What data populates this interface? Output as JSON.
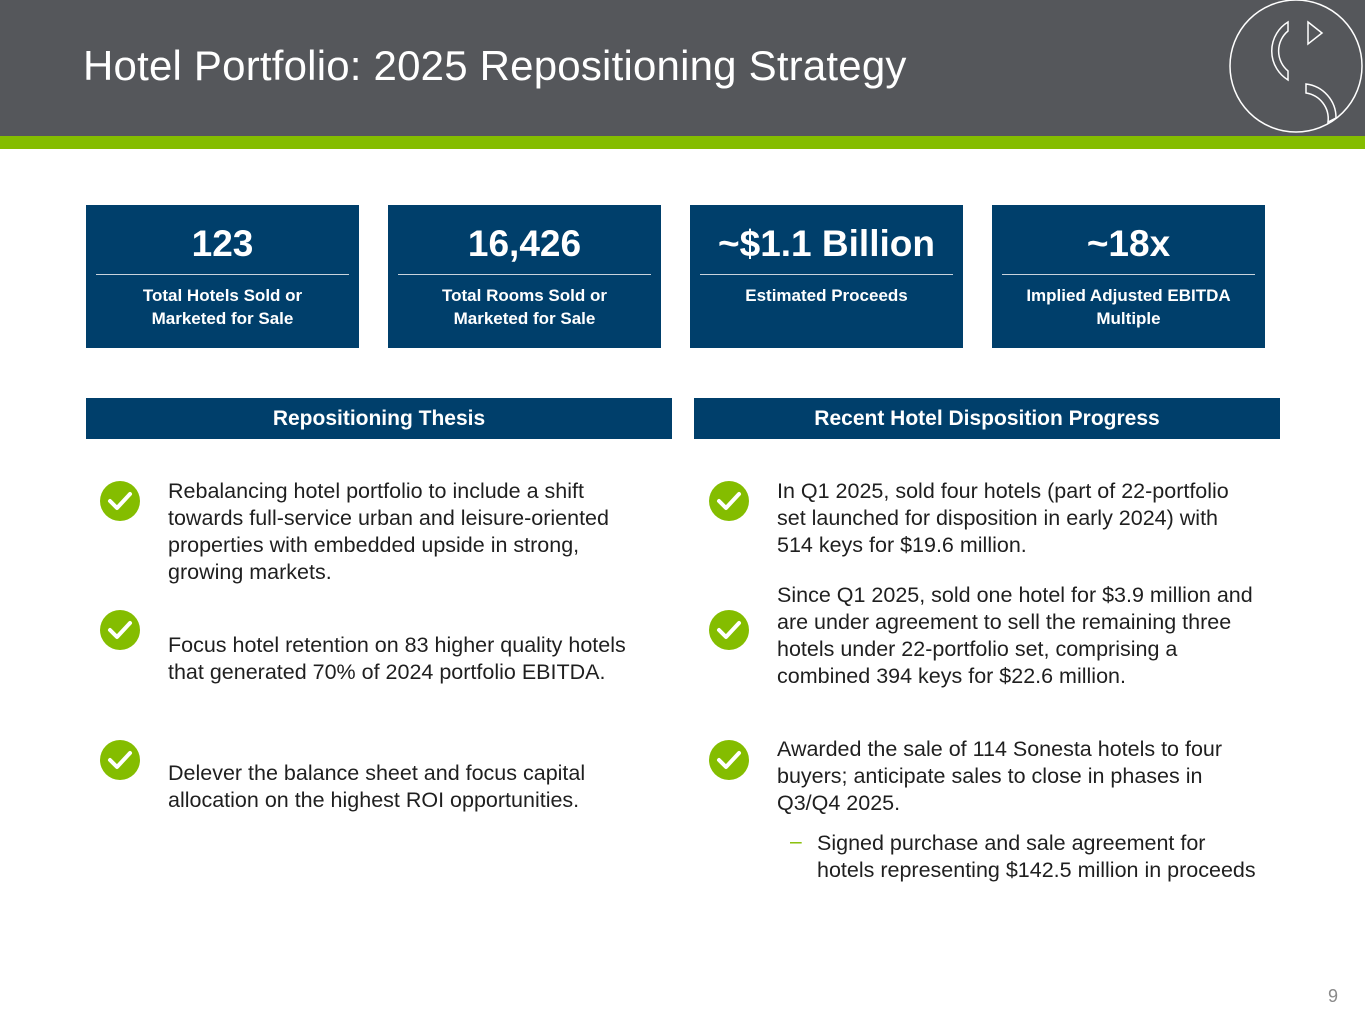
{
  "header": {
    "title": "Hotel Portfolio:  2025 Repositioning Strategy"
  },
  "colors": {
    "header_bg": "#55575b",
    "accent": "#84bd00",
    "navy": "#003f6b"
  },
  "stats": [
    {
      "value": "123",
      "label": "Total Hotels Sold or Marketed for Sale"
    },
    {
      "value": "16,426",
      "label": "Total Rooms Sold or Marketed for Sale"
    },
    {
      "value": "~$1.1 Billion",
      "label": "Estimated Proceeds"
    },
    {
      "value": "~18x",
      "label": "Implied Adjusted EBITDA Multiple"
    }
  ],
  "thesis": {
    "heading": "Repositioning Thesis",
    "items": [
      "Rebalancing hotel portfolio to include a shift towards full-service urban and leisure-oriented properties with embedded upside in strong, growing markets.",
      "Focus hotel retention on 83 higher quality hotels that generated 70% of 2024 portfolio EBITDA.",
      "Delever the balance sheet and focus capital allocation on the highest ROI opportunities."
    ]
  },
  "progress": {
    "heading": "Recent Hotel Disposition Progress",
    "items": [
      "In Q1 2025, sold four hotels (part of 22-portfolio set launched for disposition in early 2024) with 514 keys for $19.6 million.",
      "Since Q1 2025, sold one hotel for $3.9 million and are under agreement to sell the remaining three hotels under 22-portfolio set, comprising a combined 394 keys for $22.6 million.",
      "Awarded the sale of 114 Sonesta hotels to four buyers; anticipate sales to close in phases in Q3/Q4 2025."
    ],
    "sub_item": "Signed purchase and sale agreement for hotels representing $142.5 million in proceeds"
  },
  "page_number": "9"
}
